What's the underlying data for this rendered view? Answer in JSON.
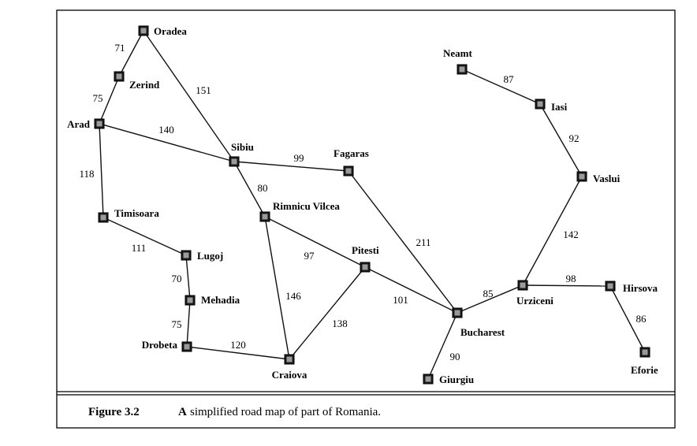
{
  "caption": {
    "number": "Figure 3.2",
    "lead": "A",
    "text": "simplified road map of part of Romania."
  },
  "cities": [
    {
      "id": "oradea",
      "name": "Oradea"
    },
    {
      "id": "zerind",
      "name": "Zerind"
    },
    {
      "id": "arad",
      "name": "Arad"
    },
    {
      "id": "timisoara",
      "name": "Timisoara"
    },
    {
      "id": "lugoj",
      "name": "Lugoj"
    },
    {
      "id": "mehadia",
      "name": "Mehadia"
    },
    {
      "id": "drobeta",
      "name": "Drobeta"
    },
    {
      "id": "craiova",
      "name": "Craiova"
    },
    {
      "id": "sibiu",
      "name": "Sibiu"
    },
    {
      "id": "rimnicu",
      "name": "Rimnicu Vilcea"
    },
    {
      "id": "fagaras",
      "name": "Fagaras"
    },
    {
      "id": "pitesti",
      "name": "Pitesti"
    },
    {
      "id": "bucharest",
      "name": "Bucharest"
    },
    {
      "id": "giurgiu",
      "name": "Giurgiu"
    },
    {
      "id": "urziceni",
      "name": "Urziceni"
    },
    {
      "id": "hirsova",
      "name": "Hirsova"
    },
    {
      "id": "eforie",
      "name": "Eforie"
    },
    {
      "id": "vaslui",
      "name": "Vaslui"
    },
    {
      "id": "iasi",
      "name": "Iasi"
    },
    {
      "id": "neamt",
      "name": "Neamt"
    }
  ],
  "roads": [
    {
      "from": "oradea",
      "to": "zerind",
      "distance": "71"
    },
    {
      "from": "zerind",
      "to": "arad",
      "distance": "75"
    },
    {
      "from": "oradea",
      "to": "sibiu",
      "distance": "151"
    },
    {
      "from": "arad",
      "to": "sibiu",
      "distance": "140"
    },
    {
      "from": "arad",
      "to": "timisoara",
      "distance": "118"
    },
    {
      "from": "timisoara",
      "to": "lugoj",
      "distance": "111"
    },
    {
      "from": "lugoj",
      "to": "mehadia",
      "distance": "70"
    },
    {
      "from": "mehadia",
      "to": "drobeta",
      "distance": "75"
    },
    {
      "from": "drobeta",
      "to": "craiova",
      "distance": "120"
    },
    {
      "from": "sibiu",
      "to": "fagaras",
      "distance": "99"
    },
    {
      "from": "sibiu",
      "to": "rimnicu",
      "distance": "80"
    },
    {
      "from": "rimnicu",
      "to": "pitesti",
      "distance": "97"
    },
    {
      "from": "rimnicu",
      "to": "craiova",
      "distance": "146"
    },
    {
      "from": "craiova",
      "to": "pitesti",
      "distance": "138"
    },
    {
      "from": "fagaras",
      "to": "bucharest",
      "distance": "211"
    },
    {
      "from": "pitesti",
      "to": "bucharest",
      "distance": "101"
    },
    {
      "from": "bucharest",
      "to": "giurgiu",
      "distance": "90"
    },
    {
      "from": "bucharest",
      "to": "urziceni",
      "distance": "85"
    },
    {
      "from": "urziceni",
      "to": "hirsova",
      "distance": "98"
    },
    {
      "from": "hirsova",
      "to": "eforie",
      "distance": "86"
    },
    {
      "from": "urziceni",
      "to": "vaslui",
      "distance": "142"
    },
    {
      "from": "vaslui",
      "to": "iasi",
      "distance": "92"
    },
    {
      "from": "iasi",
      "to": "neamt",
      "distance": "87"
    }
  ]
}
